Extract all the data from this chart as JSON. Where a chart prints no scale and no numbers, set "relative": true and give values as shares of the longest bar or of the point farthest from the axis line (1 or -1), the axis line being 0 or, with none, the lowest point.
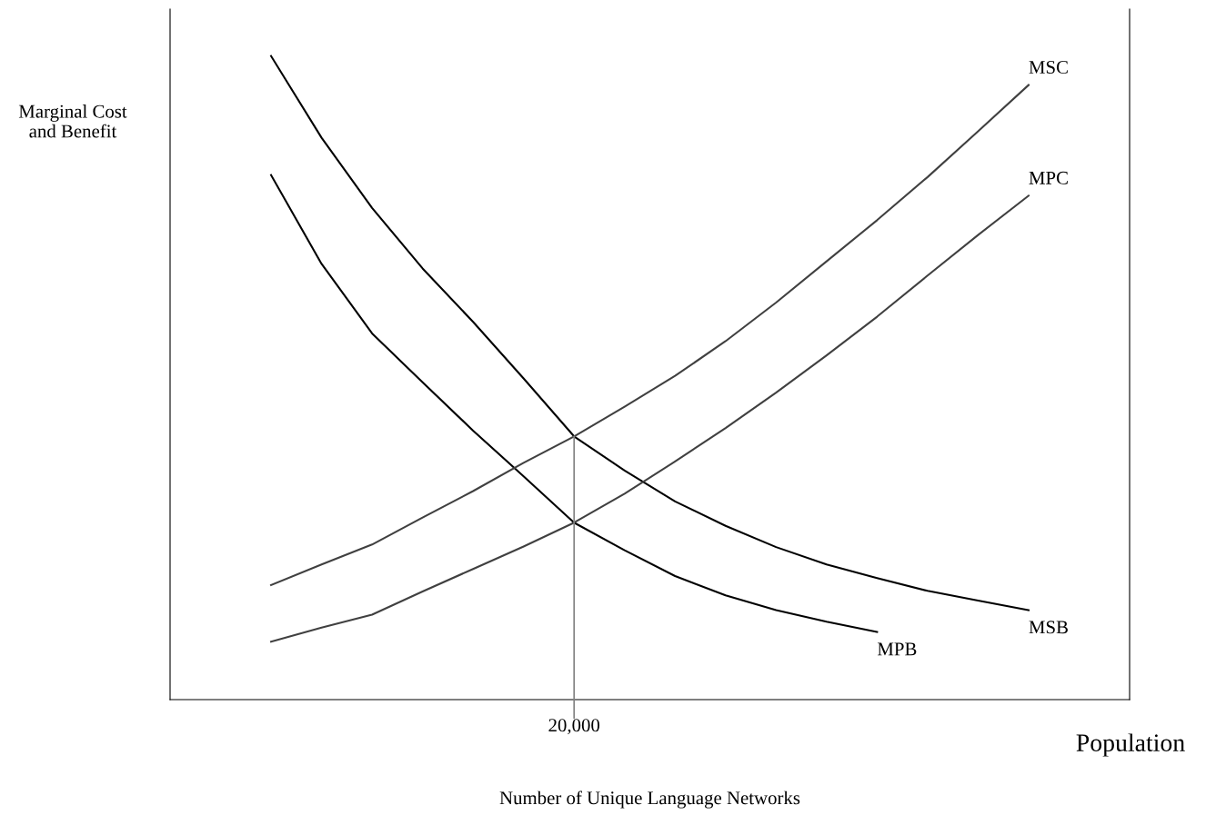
{
  "chart_data": {
    "type": "line",
    "relative": true,
    "xlabel": "Number of Unique Language Networks",
    "annotations": [
      "Marginal Cost\nand Benefit",
      "20,000",
      "Population"
    ],
    "categories": [
      null,
      null,
      null,
      null,
      null,
      null,
      null,
      null,
      null,
      null,
      null,
      null,
      null,
      null,
      null,
      null
    ],
    "grid": false,
    "legend": false,
    "marker": "none",
    "line_style": "solid",
    "series": [
      {
        "name": "MSB",
        "color": "#000000",
        "values": [
          1.0,
          0.873,
          0.764,
          0.67,
          0.587,
          0.499,
          0.409,
          0.356,
          0.308,
          0.27,
          0.237,
          0.21,
          0.189,
          0.169,
          0.154,
          0.139
        ]
      },
      {
        "name": "MPB",
        "color": "#000000",
        "values": [
          0.815,
          0.677,
          0.569,
          0.493,
          0.418,
          0.347,
          0.275,
          0.232,
          0.192,
          0.162,
          0.139,
          0.121,
          0.105,
          null,
          null,
          null
        ]
      },
      {
        "name": "MSC",
        "color": "#404040",
        "values": [
          0.178,
          0.21,
          0.241,
          0.283,
          0.324,
          0.368,
          0.409,
          0.455,
          0.503,
          0.557,
          0.617,
          0.681,
          0.745,
          0.812,
          0.883,
          0.955
        ]
      },
      {
        "name": "MPC",
        "color": "#404040",
        "values": [
          0.09,
          0.112,
          0.132,
          0.168,
          0.203,
          0.238,
          0.275,
          0.32,
          0.37,
          0.422,
          0.477,
          0.535,
          0.595,
          0.659,
          0.722,
          0.783
        ]
      }
    ]
  }
}
